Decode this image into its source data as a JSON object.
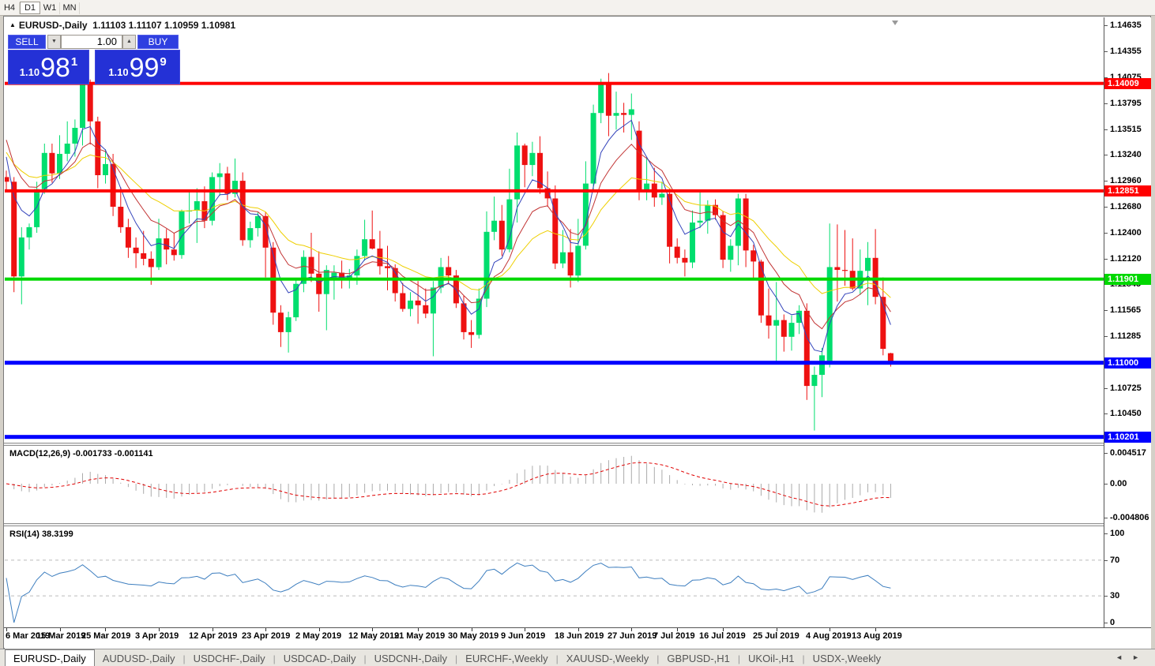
{
  "toolbar": {
    "timeframes": [
      "H4",
      "D1",
      "W1",
      "MN"
    ],
    "active": "D1"
  },
  "title": {
    "collapse_glyph": "▲",
    "symbol": "EURUSD-,Daily",
    "ohlc_text": "1.11103 1.11107 1.10959 1.10981"
  },
  "quote_panel": {
    "sell_label": "SELL",
    "buy_label": "BUY",
    "volume": "1.00",
    "spinner_down_glyph": "▼",
    "spinner_up_glyph": "▲",
    "sell_price_small": "1.10",
    "sell_price_big": "98",
    "sell_price_sup": "1",
    "buy_price_small": "1.10",
    "buy_price_big": "99",
    "buy_price_sup": "9"
  },
  "price_axis_ticks": [
    "1.14635",
    "1.14355",
    "1.14075",
    "1.13795",
    "1.13515",
    "1.13240",
    "1.12960",
    "1.12680",
    "1.12400",
    "1.12120",
    "1.11845",
    "1.11565",
    "1.11285",
    "1.11005",
    "1.10725",
    "1.10450",
    "1.10170"
  ],
  "macd": {
    "label": "MACD(12,26,9) -0.001733 -0.001141",
    "ticks": [
      "0.004517",
      "0.00",
      "-0.004806"
    ]
  },
  "rsi": {
    "label": "RSI(14) 38.3199",
    "ticks": [
      "100",
      "70",
      "30",
      "0"
    ],
    "levels": [
      70,
      30
    ]
  },
  "date_ticks": [
    {
      "label": "6 Mar 2019",
      "index": 0
    },
    {
      "label": "15 Mar 2019",
      "index": 7
    },
    {
      "label": "25 Mar 2019",
      "index": 13
    },
    {
      "label": "3 Apr 2019",
      "index": 20
    },
    {
      "label": "12 Apr 2019",
      "index": 27
    },
    {
      "label": "23 Apr 2019",
      "index": 34
    },
    {
      "label": "2 May 2019",
      "index": 41
    },
    {
      "label": "12 May 2019",
      "index": 48
    },
    {
      "label": "21 May 2019",
      "index": 54
    },
    {
      "label": "30 May 2019",
      "index": 61
    },
    {
      "label": "9 Jun 2019",
      "index": 68
    },
    {
      "label": "18 Jun 2019",
      "index": 75
    },
    {
      "label": "27 Jun 2019",
      "index": 82
    },
    {
      "label": "7 Jul 2019",
      "index": 88
    },
    {
      "label": "16 Jul 2019",
      "index": 94
    },
    {
      "label": "25 Jul 2019",
      "index": 101
    },
    {
      "label": "4 Aug 2019",
      "index": 108
    },
    {
      "label": "13 Aug 2019",
      "index": 114
    }
  ],
  "tabs": {
    "items": [
      "EURUSD-,Daily",
      "AUDUSD-,Daily",
      "USDCHF-,Daily",
      "USDCAD-,Daily",
      "USDCNH-,Daily",
      "EURCHF-,Weekly",
      "XAUUSD-,Weekly",
      "GBPUSD-,H1",
      "UKOil-,H1",
      "USDX-,Weekly"
    ],
    "active_index": 0,
    "left_arrow_glyph": "◄",
    "right_arrow_glyph": "►"
  },
  "colors": {
    "bull_candle": "#00DE6E",
    "bear_candle": "#EE1111",
    "ma_fast_blue": "#3343BB",
    "ma_mid_red": "#C23434",
    "ma_slow_yellow": "#EECF00",
    "macd_histogram": "#ABABAB",
    "macd_signal": "#E00000",
    "rsi_line": "#3D7EBF",
    "level_red": "#FF0000",
    "level_green": "#00D800",
    "level_blue": "#0000FF"
  },
  "chart_data": {
    "type": "candlestick",
    "symbol": "EURUSD-",
    "timeframe": "Daily",
    "current_bar": {
      "open": 1.11103,
      "high": 1.11107,
      "low": 1.10959,
      "close": 1.10981
    },
    "bid": "1.10981",
    "ask": "1.10999",
    "horizontal_lines": [
      {
        "price": 1.14009,
        "label": "1.14009",
        "color": "#FF0000",
        "thickness": 4
      },
      {
        "price": 1.12851,
        "label": "1.12851",
        "color": "#FF0000",
        "thickness": 4
      },
      {
        "price": 1.11901,
        "label": "1.11901",
        "color": "#00D800",
        "thickness": 4
      },
      {
        "price": 1.11,
        "label": "1.11000",
        "color": "#0000FF",
        "thickness": 5
      },
      {
        "price": 1.10201,
        "label": "1.10201",
        "color": "#0000FF",
        "thickness": 5
      }
    ],
    "indicators": [
      {
        "name": "MACD",
        "params": [
          12,
          26,
          9
        ],
        "current_values": [
          -0.001733,
          -0.001141
        ]
      },
      {
        "name": "RSI",
        "params": [
          14
        ],
        "current_value": 38.3199
      }
    ],
    "ohlc": [
      [
        1.13,
        1.1307,
        1.1285,
        1.1295
      ],
      [
        1.1295,
        1.13,
        1.1176,
        1.1193
      ],
      [
        1.1193,
        1.1246,
        1.1163,
        1.1235
      ],
      [
        1.1235,
        1.125,
        1.1222,
        1.1246
      ],
      [
        1.1246,
        1.1295,
        1.124,
        1.1287
      ],
      [
        1.1287,
        1.1336,
        1.1282,
        1.1326
      ],
      [
        1.1326,
        1.1336,
        1.1294,
        1.1304
      ],
      [
        1.1304,
        1.1345,
        1.1298,
        1.1325
      ],
      [
        1.1325,
        1.136,
        1.1317,
        1.1336
      ],
      [
        1.1336,
        1.1362,
        1.1322,
        1.1353
      ],
      [
        1.1353,
        1.141,
        1.1334,
        1.14
      ],
      [
        1.14,
        1.1405,
        1.1335,
        1.136
      ],
      [
        1.136,
        1.1365,
        1.1288,
        1.1302
      ],
      [
        1.1302,
        1.133,
        1.1293,
        1.1314
      ],
      [
        1.1314,
        1.1325,
        1.1258,
        1.1268
      ],
      [
        1.1268,
        1.1289,
        1.124,
        1.1246
      ],
      [
        1.1246,
        1.1255,
        1.1213,
        1.1224
      ],
      [
        1.1224,
        1.1235,
        1.1202,
        1.1218
      ],
      [
        1.1218,
        1.1242,
        1.1205,
        1.1212
      ],
      [
        1.1212,
        1.122,
        1.1184,
        1.1203
      ],
      [
        1.1203,
        1.1255,
        1.12,
        1.1234
      ],
      [
        1.1234,
        1.1244,
        1.1206,
        1.1222
      ],
      [
        1.1222,
        1.124,
        1.121,
        1.1216
      ],
      [
        1.1216,
        1.1265,
        1.1212,
        1.1263
      ],
      [
        1.1263,
        1.1285,
        1.125,
        1.1264
      ],
      [
        1.1264,
        1.1288,
        1.1229,
        1.1274
      ],
      [
        1.1274,
        1.129,
        1.1245,
        1.1253
      ],
      [
        1.1253,
        1.1305,
        1.1248,
        1.13
      ],
      [
        1.13,
        1.1315,
        1.128,
        1.1304
      ],
      [
        1.1304,
        1.1311,
        1.1275,
        1.1282
      ],
      [
        1.1282,
        1.132,
        1.1278,
        1.1296
      ],
      [
        1.1296,
        1.1305,
        1.1226,
        1.1232
      ],
      [
        1.1232,
        1.1252,
        1.1224,
        1.1245
      ],
      [
        1.1245,
        1.1262,
        1.1236,
        1.1258
      ],
      [
        1.1258,
        1.1262,
        1.1192,
        1.1224
      ],
      [
        1.1224,
        1.123,
        1.1141,
        1.1154
      ],
      [
        1.1154,
        1.1162,
        1.1117,
        1.1133
      ],
      [
        1.1133,
        1.1155,
        1.1111,
        1.1149
      ],
      [
        1.1149,
        1.119,
        1.1145,
        1.1185
      ],
      [
        1.1185,
        1.1221,
        1.1176,
        1.1214
      ],
      [
        1.1214,
        1.124,
        1.1187,
        1.1196
      ],
      [
        1.1196,
        1.122,
        1.1155,
        1.1174
      ],
      [
        1.1174,
        1.1205,
        1.1135,
        1.12
      ],
      [
        1.119,
        1.1205,
        1.1168,
        1.1197
      ],
      [
        1.1197,
        1.121,
        1.118,
        1.1191
      ],
      [
        1.1191,
        1.1201,
        1.118,
        1.1194
      ],
      [
        1.1194,
        1.1222,
        1.1184,
        1.1215
      ],
      [
        1.1215,
        1.1254,
        1.121,
        1.1233
      ],
      [
        1.1233,
        1.1264,
        1.1222,
        1.1223
      ],
      [
        1.1223,
        1.1242,
        1.1195,
        1.1204
      ],
      [
        1.1204,
        1.1226,
        1.1178,
        1.1202
      ],
      [
        1.1202,
        1.1206,
        1.1166,
        1.1175
      ],
      [
        1.1175,
        1.1186,
        1.1155,
        1.1158
      ],
      [
        1.1158,
        1.1176,
        1.115,
        1.1167
      ],
      [
        1.1167,
        1.1188,
        1.1142,
        1.1162
      ],
      [
        1.1162,
        1.118,
        1.1148,
        1.1153
      ],
      [
        1.1153,
        1.1188,
        1.1107,
        1.1181
      ],
      [
        1.1181,
        1.1213,
        1.1175,
        1.1203
      ],
      [
        1.1203,
        1.1215,
        1.1186,
        1.1194
      ],
      [
        1.1194,
        1.12,
        1.1159,
        1.1164
      ],
      [
        1.1164,
        1.1172,
        1.1125,
        1.1133
      ],
      [
        1.1133,
        1.1146,
        1.1116,
        1.113
      ],
      [
        1.113,
        1.118,
        1.1126,
        1.1169
      ],
      [
        1.1169,
        1.1263,
        1.116,
        1.1241
      ],
      [
        1.1241,
        1.1279,
        1.1232,
        1.1253
      ],
      [
        1.1253,
        1.127,
        1.1215,
        1.1222
      ],
      [
        1.1222,
        1.1309,
        1.1219,
        1.1276
      ],
      [
        1.1276,
        1.1348,
        1.1251,
        1.1334
      ],
      [
        1.1334,
        1.1336,
        1.1289,
        1.1313
      ],
      [
        1.1313,
        1.1338,
        1.1301,
        1.1326
      ],
      [
        1.1326,
        1.1344,
        1.1282,
        1.1288
      ],
      [
        1.1288,
        1.1306,
        1.1268,
        1.1277
      ],
      [
        1.1277,
        1.1291,
        1.1201,
        1.1207
      ],
      [
        1.1207,
        1.1243,
        1.1202,
        1.1219
      ],
      [
        1.1219,
        1.1244,
        1.1181,
        1.1194
      ],
      [
        1.1194,
        1.1255,
        1.1187,
        1.1226
      ],
      [
        1.1226,
        1.1317,
        1.1222,
        1.1293
      ],
      [
        1.1293,
        1.1378,
        1.1285,
        1.1369
      ],
      [
        1.1369,
        1.1406,
        1.1358,
        1.14
      ],
      [
        1.14,
        1.1412,
        1.1344,
        1.1366
      ],
      [
        1.1366,
        1.1392,
        1.1351,
        1.1369
      ],
      [
        1.1369,
        1.138,
        1.1348,
        1.1367
      ],
      [
        1.1367,
        1.139,
        1.134,
        1.1373
      ],
      [
        1.135,
        1.136,
        1.1275,
        1.1285
      ],
      [
        1.1285,
        1.1322,
        1.1275,
        1.1293
      ],
      [
        1.1293,
        1.131,
        1.1268,
        1.1278
      ],
      [
        1.1278,
        1.1295,
        1.127,
        1.1282
      ],
      [
        1.1282,
        1.1288,
        1.1207,
        1.1225
      ],
      [
        1.1225,
        1.1234,
        1.1207,
        1.1213
      ],
      [
        1.1213,
        1.1222,
        1.1193,
        1.1208
      ],
      [
        1.1208,
        1.1264,
        1.1202,
        1.1251
      ],
      [
        1.1251,
        1.1286,
        1.1245,
        1.1253
      ],
      [
        1.1253,
        1.1275,
        1.1239,
        1.127
      ],
      [
        1.127,
        1.1276,
        1.1254,
        1.1259
      ],
      [
        1.1259,
        1.1263,
        1.1202,
        1.1211
      ],
      [
        1.1211,
        1.1233,
        1.1198,
        1.1226
      ],
      [
        1.1226,
        1.1282,
        1.1205,
        1.1277
      ],
      [
        1.1277,
        1.1282,
        1.1203,
        1.1221
      ],
      [
        1.1221,
        1.1227,
        1.1189,
        1.1209
      ],
      [
        1.1209,
        1.1211,
        1.1143,
        1.1151
      ],
      [
        1.1151,
        1.118,
        1.1126,
        1.114
      ],
      [
        1.114,
        1.1187,
        1.1101,
        1.1146
      ],
      [
        1.1146,
        1.1152,
        1.1112,
        1.1128
      ],
      [
        1.1128,
        1.1151,
        1.1113,
        1.1143
      ],
      [
        1.1143,
        1.1162,
        1.1131,
        1.1156
      ],
      [
        1.1156,
        1.1164,
        1.106,
        1.1075
      ],
      [
        1.1075,
        1.1096,
        1.1027,
        1.1087
      ],
      [
        1.1087,
        1.1116,
        1.1063,
        1.1108
      ],
      [
        1.11,
        1.125,
        1.1095,
        1.1203
      ],
      [
        1.1203,
        1.1249,
        1.1166,
        1.12
      ],
      [
        1.12,
        1.1243,
        1.1183,
        1.1199
      ],
      [
        1.1199,
        1.1234,
        1.1178,
        1.118
      ],
      [
        1.118,
        1.1222,
        1.1173,
        1.1199
      ],
      [
        1.1199,
        1.123,
        1.1162,
        1.1213
      ],
      [
        1.1213,
        1.1244,
        1.1163,
        1.1171
      ],
      [
        1.1171,
        1.1192,
        1.1108,
        1.1115
      ],
      [
        1.11103,
        1.11107,
        1.10959,
        1.10981
      ]
    ]
  }
}
